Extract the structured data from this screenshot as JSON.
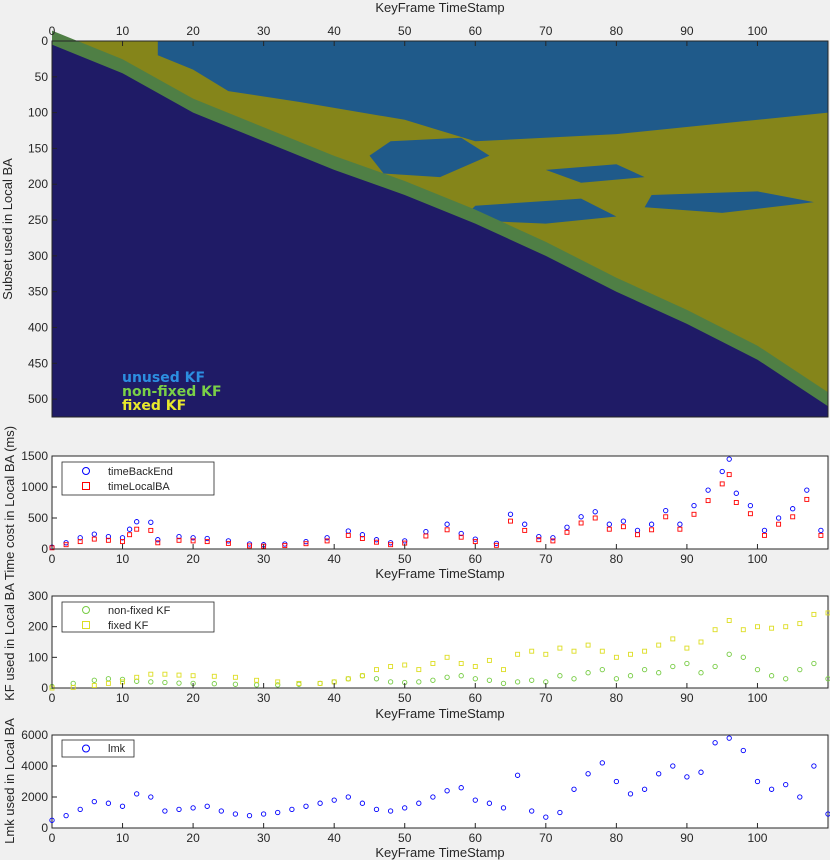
{
  "chart_data": [
    {
      "type": "heatmap",
      "xlabel": "KeyFrame TimeStamp",
      "ylabel": "Subset used in Local BA",
      "xlim": [
        0,
        110
      ],
      "ylim": [
        0,
        525
      ],
      "xticks": [
        0,
        10,
        20,
        30,
        40,
        50,
        60,
        70,
        80,
        90,
        100
      ],
      "yticks": [
        0,
        50,
        100,
        150,
        200,
        250,
        300,
        350,
        400,
        450,
        500
      ],
      "x_axis_position": "top",
      "y_reversed": true,
      "legend": {
        "position": "bottom-left",
        "entries": [
          "unused KF",
          "non-fixed KF",
          "fixed KF"
        ]
      },
      "legend_colors": [
        "#2c8ee0",
        "#7ad047",
        "#e8e82c"
      ],
      "category_colors": {
        "unused": "#1f1b66",
        "unused_KF": "#1f5a8a",
        "non_fixed_KF": "#4f7f45",
        "fixed_KF": "#85851a"
      },
      "diagonal_boundary": {
        "x": [
          0,
          10,
          20,
          30,
          40,
          50,
          60,
          70,
          80,
          90,
          100,
          110
        ],
        "y": [
          5,
          45,
          100,
          140,
          180,
          215,
          255,
          300,
          350,
          395,
          445,
          510
        ]
      }
    },
    {
      "type": "scatter",
      "xlabel": "KeyFrame TimeStamp",
      "ylabel": "Time cost in Local BA (ms)",
      "xlim": [
        0,
        110
      ],
      "ylim": [
        0,
        1500
      ],
      "xticks": [
        0,
        10,
        20,
        30,
        40,
        50,
        60,
        70,
        80,
        90,
        100
      ],
      "yticks": [
        0,
        500,
        1000,
        1500
      ],
      "legend": {
        "position": "top-left",
        "entries": [
          "timeBackEnd",
          "timeLocalBA"
        ]
      },
      "series": [
        {
          "name": "timeBackEnd",
          "color": "#0000ff",
          "marker": "circle",
          "x": [
            0,
            2,
            4,
            6,
            8,
            10,
            11,
            12,
            14,
            15,
            18,
            20,
            22,
            25,
            28,
            30,
            33,
            36,
            39,
            42,
            44,
            46,
            48,
            50,
            53,
            56,
            58,
            60,
            63,
            65,
            67,
            69,
            71,
            73,
            75,
            77,
            79,
            81,
            83,
            85,
            87,
            89,
            91,
            93,
            95,
            96,
            97,
            99,
            101,
            103,
            105,
            107,
            109
          ],
          "y": [
            30,
            100,
            180,
            240,
            200,
            180,
            320,
            440,
            430,
            150,
            200,
            180,
            170,
            130,
            80,
            70,
            80,
            120,
            180,
            290,
            230,
            150,
            100,
            130,
            280,
            400,
            250,
            160,
            90,
            560,
            400,
            200,
            180,
            350,
            520,
            600,
            400,
            450,
            300,
            400,
            620,
            400,
            700,
            950,
            1250,
            1450,
            900,
            700,
            300,
            500,
            650,
            950,
            300
          ]
        },
        {
          "name": "timeLocalBA",
          "color": "#ff0000",
          "marker": "square",
          "x": [
            0,
            2,
            4,
            6,
            8,
            10,
            11,
            12,
            14,
            15,
            18,
            20,
            22,
            25,
            28,
            30,
            33,
            36,
            39,
            42,
            44,
            46,
            48,
            50,
            53,
            56,
            58,
            60,
            63,
            65,
            67,
            69,
            71,
            73,
            75,
            77,
            79,
            81,
            83,
            85,
            87,
            89,
            91,
            93,
            95,
            96,
            97,
            99,
            101,
            103,
            105,
            107,
            109
          ],
          "y": [
            20,
            70,
            120,
            160,
            140,
            120,
            230,
            320,
            300,
            100,
            140,
            130,
            120,
            90,
            50,
            45,
            55,
            85,
            130,
            220,
            170,
            110,
            70,
            95,
            210,
            310,
            190,
            120,
            60,
            450,
            300,
            150,
            130,
            270,
            420,
            500,
            320,
            360,
            230,
            310,
            520,
            320,
            560,
            780,
            1050,
            1200,
            750,
            570,
            220,
            400,
            520,
            800,
            220
          ]
        }
      ]
    },
    {
      "type": "scatter",
      "xlabel": "KeyFrame TimeStamp",
      "ylabel": "KF used in Local BA",
      "xlim": [
        0,
        110
      ],
      "ylim": [
        0,
        300
      ],
      "xticks": [
        0,
        10,
        20,
        30,
        40,
        50,
        60,
        70,
        80,
        90,
        100
      ],
      "yticks": [
        0,
        100,
        200,
        300
      ],
      "legend": {
        "position": "top-left",
        "entries": [
          "non-fixed KF",
          "fixed KF"
        ]
      },
      "series": [
        {
          "name": "non-fixed KF",
          "color": "#77cc44",
          "marker": "circle",
          "x": [
            0,
            3,
            6,
            8,
            10,
            12,
            14,
            16,
            18,
            20,
            23,
            26,
            29,
            32,
            35,
            38,
            40,
            42,
            44,
            46,
            48,
            50,
            52,
            54,
            56,
            58,
            60,
            62,
            64,
            66,
            68,
            70,
            72,
            74,
            76,
            78,
            80,
            82,
            84,
            86,
            88,
            90,
            92,
            94,
            96,
            98,
            100,
            102,
            104,
            106,
            108,
            110
          ],
          "y": [
            5,
            15,
            25,
            30,
            28,
            22,
            20,
            18,
            16,
            15,
            14,
            12,
            10,
            10,
            12,
            15,
            20,
            30,
            40,
            30,
            20,
            18,
            20,
            25,
            35,
            40,
            30,
            25,
            15,
            20,
            25,
            20,
            40,
            30,
            50,
            60,
            30,
            40,
            60,
            50,
            70,
            80,
            50,
            70,
            110,
            100,
            60,
            40,
            30,
            60,
            80,
            30
          ]
        },
        {
          "name": "fixed KF",
          "color": "#dddd22",
          "marker": "square",
          "x": [
            0,
            3,
            6,
            8,
            10,
            12,
            14,
            16,
            18,
            20,
            23,
            26,
            29,
            32,
            35,
            38,
            40,
            42,
            44,
            46,
            48,
            50,
            52,
            54,
            56,
            58,
            60,
            62,
            64,
            66,
            68,
            70,
            72,
            74,
            76,
            78,
            80,
            82,
            84,
            86,
            88,
            90,
            92,
            94,
            96,
            98,
            100,
            102,
            104,
            106,
            108,
            110
          ],
          "y": [
            0,
            2,
            8,
            15,
            20,
            35,
            45,
            45,
            42,
            40,
            38,
            35,
            25,
            20,
            15,
            15,
            20,
            30,
            40,
            60,
            70,
            75,
            60,
            80,
            100,
            80,
            70,
            90,
            60,
            110,
            120,
            110,
            130,
            120,
            140,
            120,
            100,
            110,
            120,
            140,
            160,
            130,
            150,
            190,
            220,
            190,
            200,
            195,
            200,
            210,
            240,
            245
          ]
        }
      ]
    },
    {
      "type": "scatter",
      "xlabel": "KeyFrame TimeStamp",
      "ylabel": "Lmk used in Local BA",
      "xlim": [
        0,
        110
      ],
      "ylim": [
        0,
        6000
      ],
      "xticks": [
        0,
        10,
        20,
        30,
        40,
        50,
        60,
        70,
        80,
        90,
        100
      ],
      "yticks": [
        0,
        2000,
        4000,
        6000
      ],
      "legend": {
        "position": "top-left",
        "entries": [
          "lmk"
        ]
      },
      "series": [
        {
          "name": "lmk",
          "color": "#0000ff",
          "marker": "circle",
          "x": [
            0,
            2,
            4,
            6,
            8,
            10,
            12,
            14,
            16,
            18,
            20,
            22,
            24,
            26,
            28,
            30,
            32,
            34,
            36,
            38,
            40,
            42,
            44,
            46,
            48,
            50,
            52,
            54,
            56,
            58,
            60,
            62,
            64,
            66,
            68,
            70,
            72,
            74,
            76,
            78,
            80,
            82,
            84,
            86,
            88,
            90,
            92,
            94,
            96,
            98,
            100,
            102,
            104,
            106,
            108,
            110
          ],
          "y": [
            500,
            800,
            1200,
            1700,
            1600,
            1400,
            2200,
            2000,
            1100,
            1200,
            1300,
            1400,
            1100,
            900,
            800,
            900,
            1000,
            1200,
            1400,
            1600,
            1800,
            2000,
            1600,
            1200,
            1100,
            1300,
            1600,
            2000,
            2400,
            2600,
            1800,
            1600,
            1300,
            3400,
            1100,
            700,
            1000,
            2500,
            3500,
            4200,
            3000,
            2200,
            2500,
            3500,
            4000,
            3300,
            3600,
            5500,
            5800,
            5000,
            3000,
            2500,
            2800,
            2000,
            4000,
            900
          ]
        }
      ]
    }
  ]
}
